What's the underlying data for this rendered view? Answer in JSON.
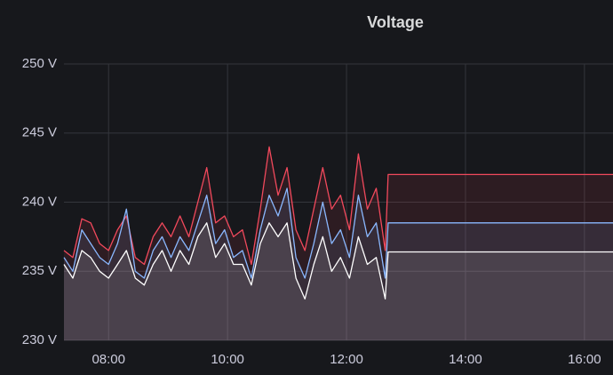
{
  "chart_data": {
    "type": "line",
    "title": "Voltage",
    "x": [
      7.25,
      7.4,
      7.55,
      7.7,
      7.85,
      8.0,
      8.15,
      8.3,
      8.45,
      8.6,
      8.75,
      8.9,
      9.05,
      9.2,
      9.35,
      9.5,
      9.65,
      9.8,
      9.95,
      10.1,
      10.25,
      10.4,
      10.55,
      10.7,
      10.85,
      11.0,
      11.15,
      11.3,
      11.45,
      11.6,
      11.75,
      11.9,
      12.05,
      12.2,
      12.35,
      12.5,
      12.65,
      12.7,
      16.48
    ],
    "series": [
      {
        "color": "#f2495c",
        "values": [
          236.5,
          236,
          238.8,
          238.5,
          237,
          236.5,
          238,
          239,
          236,
          235.5,
          237.5,
          238.5,
          237.5,
          239,
          237.5,
          240,
          242.5,
          238.5,
          239,
          237.5,
          238,
          235.5,
          239.5,
          244,
          240.5,
          242.5,
          238,
          236.5,
          239.5,
          242.5,
          239.5,
          240.5,
          238,
          243.5,
          239.5,
          241,
          236.5,
          242,
          242
        ]
      },
      {
        "color": "#8ab8ff",
        "values": [
          236,
          235,
          238,
          237,
          236,
          235.5,
          237,
          239.5,
          235,
          234.5,
          236.5,
          237.5,
          236,
          237.5,
          236.5,
          238.5,
          240.5,
          237,
          238,
          236,
          236.5,
          234.5,
          238,
          240.5,
          239,
          241,
          236,
          234.5,
          237,
          240,
          237,
          238,
          236,
          240.5,
          237.5,
          238.5,
          234.5,
          238.5,
          238.5
        ]
      },
      {
        "color": "#ffffff",
        "values": [
          235.5,
          234.5,
          236.5,
          236,
          235,
          234.5,
          235.5,
          236.5,
          234.5,
          234,
          235.5,
          236.5,
          235,
          236.5,
          235.5,
          237.5,
          238.5,
          236,
          237,
          235.5,
          235.5,
          234,
          237,
          238.5,
          237.5,
          238.5,
          234.5,
          233,
          235.5,
          237.5,
          235,
          236,
          234.5,
          237.5,
          235.5,
          236,
          233,
          236.4,
          236.4
        ]
      }
    ],
    "xlim": [
      7.25,
      16.48
    ],
    "xticks": [
      {
        "value": 8,
        "label": "08:00"
      },
      {
        "value": 10,
        "label": "10:00"
      },
      {
        "value": 12,
        "label": "12:00"
      },
      {
        "value": 14,
        "label": "14:00"
      },
      {
        "value": 16,
        "label": "16:00"
      }
    ],
    "ylim": [
      230,
      250
    ],
    "yticks": [
      {
        "value": 230,
        "label": "230 V"
      },
      {
        "value": 235,
        "label": "235 V"
      },
      {
        "value": 240,
        "label": "240 V"
      },
      {
        "value": 245,
        "label": "245 V"
      },
      {
        "value": 250,
        "label": "250 V"
      }
    ],
    "grid": true
  }
}
